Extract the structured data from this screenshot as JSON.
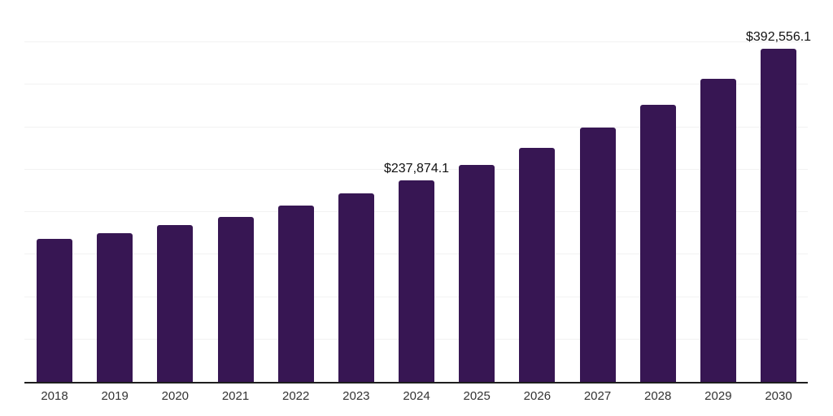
{
  "chart_data": {
    "type": "bar",
    "title": "",
    "xlabel": "",
    "ylabel": "",
    "categories": [
      "2018",
      "2019",
      "2020",
      "2021",
      "2022",
      "2023",
      "2024",
      "2025",
      "2026",
      "2027",
      "2028",
      "2029",
      "2030"
    ],
    "values": [
      168400,
      175100,
      184700,
      194700,
      207600,
      222000,
      237874.1,
      255500,
      275600,
      300000,
      326300,
      356900,
      392556.1
    ],
    "data_labels": [
      null,
      null,
      null,
      null,
      null,
      null,
      "$237,874.1",
      null,
      null,
      null,
      null,
      null,
      "$392,556.1"
    ],
    "labeled_values_note": "only 2024 and 2030 bars show data labels; other values estimated from gridlines",
    "ylim": [
      0,
      450000
    ],
    "gridline_step": 50000,
    "grid": true,
    "legend": "none",
    "colors": {
      "bar": "#371653",
      "gridline": "#f2f2f2",
      "axis_line": "#1f1f1f",
      "tick_label": "#333333",
      "data_label": "#111111",
      "background": "#ffffff"
    }
  }
}
